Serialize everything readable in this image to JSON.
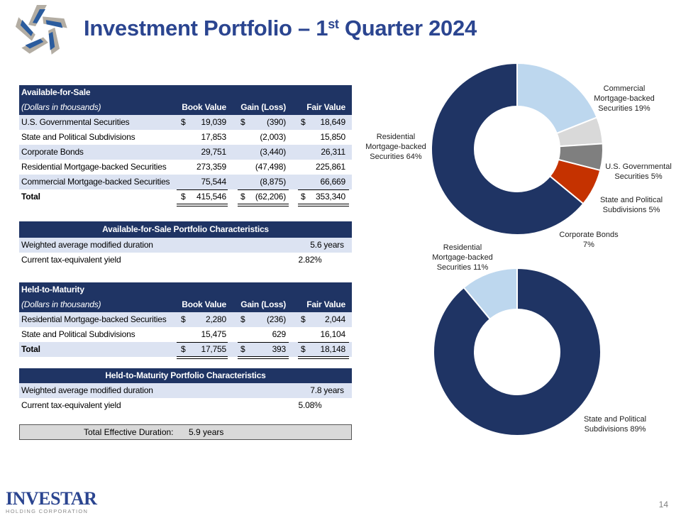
{
  "title": {
    "main": "Investment Portfolio – 1",
    "sup": "st",
    "rest": " Quarter 2024"
  },
  "afs": {
    "heading": "Available-for-Sale",
    "units": "(Dollars in thousands)",
    "columns": [
      "Book Value",
      "Gain (Loss)",
      "Fair Value"
    ],
    "rows": [
      {
        "label": "U.S. Governmental Securities",
        "dollar": true,
        "values": [
          "19,039",
          "(390)",
          "18,649"
        ]
      },
      {
        "label": "State and Political Subdivisions",
        "dollar": false,
        "values": [
          "17,853",
          "(2,003)",
          "15,850"
        ]
      },
      {
        "label": "Corporate Bonds",
        "dollar": false,
        "values": [
          "29,751",
          "(3,440)",
          "26,311"
        ]
      },
      {
        "label": "Residential Mortgage-backed Securities",
        "dollar": false,
        "values": [
          "273,359",
          "(47,498)",
          "225,861"
        ]
      },
      {
        "label": "Commercial Mortgage-backed Securities",
        "dollar": false,
        "values": [
          "75,544",
          "(8,875)",
          "66,669"
        ]
      }
    ],
    "total": {
      "label": "Total",
      "values": [
        "415,546",
        "(62,206)",
        "353,340"
      ]
    },
    "currency": "$"
  },
  "afs_char": {
    "heading": "Available-for-Sale Portfolio Characteristics",
    "rows": [
      {
        "label": "Weighted average modified duration",
        "value": "5.6 years"
      },
      {
        "label": "Current tax-equivalent yield",
        "value": "2.82%"
      }
    ]
  },
  "htm": {
    "heading": "Held-to-Maturity",
    "units": "(Dollars in thousands)",
    "columns": [
      "Book Value",
      "Gain (Loss)",
      "Fair Value"
    ],
    "rows": [
      {
        "label": "Residential Mortgage-backed Securities",
        "values": [
          "2,280",
          "(236)",
          "2,044"
        ]
      },
      {
        "label": "State and Political Subdivisions",
        "values": [
          "15,475",
          "629",
          "16,104"
        ]
      }
    ],
    "total": {
      "label": "Total",
      "values": [
        "17,755",
        "393",
        "18,148"
      ]
    },
    "currency": "$"
  },
  "htm_char": {
    "heading": "Held-to-Maturity Portfolio Characteristics",
    "rows": [
      {
        "label": "Weighted average modified duration",
        "value": "7.8 years"
      },
      {
        "label": "Current tax-equivalent yield",
        "value": "5.08%"
      }
    ]
  },
  "total_duration": {
    "label": "Total Effective Duration:",
    "value": "5.9 years"
  },
  "chart_data": [
    {
      "type": "pie",
      "donut": true,
      "slices": [
        {
          "label": "Commercial Mortgage-backed Securities",
          "label_lines": [
            "Commercial",
            "Mortgage-backed",
            "Securities  19%"
          ],
          "value": 19,
          "color": "#BDD7EE"
        },
        {
          "label": "U.S. Governmental Securities",
          "label_lines": [
            "U.S. Governmental",
            "Securities  5%"
          ],
          "value": 5,
          "color": "#D9D9D9"
        },
        {
          "label": "State and Political Subdivisions",
          "label_lines": [
            "State  and Political",
            "Subdivisions  5%"
          ],
          "value": 5,
          "color": "#7F7F7F"
        },
        {
          "label": "Corporate Bonds",
          "label_lines": [
            "Corporate  Bonds",
            "7%"
          ],
          "value": 7,
          "color": "#C53200"
        },
        {
          "label": "Residential Mortgage-backed Securities",
          "label_lines": [
            "Residential",
            "Mortgage-backed",
            "Securities  64%"
          ],
          "value": 64,
          "color": "#1F3464"
        }
      ]
    },
    {
      "type": "pie",
      "donut": true,
      "slices": [
        {
          "label": "State and Political Subdivisions",
          "label_lines": [
            "State  and Political",
            "Subdivisions  89%"
          ],
          "value": 89,
          "color": "#1F3464"
        },
        {
          "label": "Residential Mortgage-backed Securities",
          "label_lines": [
            "Residential",
            "Mortgage-backed",
            "Securities  11%"
          ],
          "value": 11,
          "color": "#BDD7EE"
        }
      ]
    }
  ],
  "footer": {
    "brand": "INVESTAR",
    "brand_sub": "HOLDING CORPORATION",
    "page": "14"
  },
  "logo": {
    "colors": [
      "#2B5C9E",
      "#B3ADA3"
    ]
  }
}
